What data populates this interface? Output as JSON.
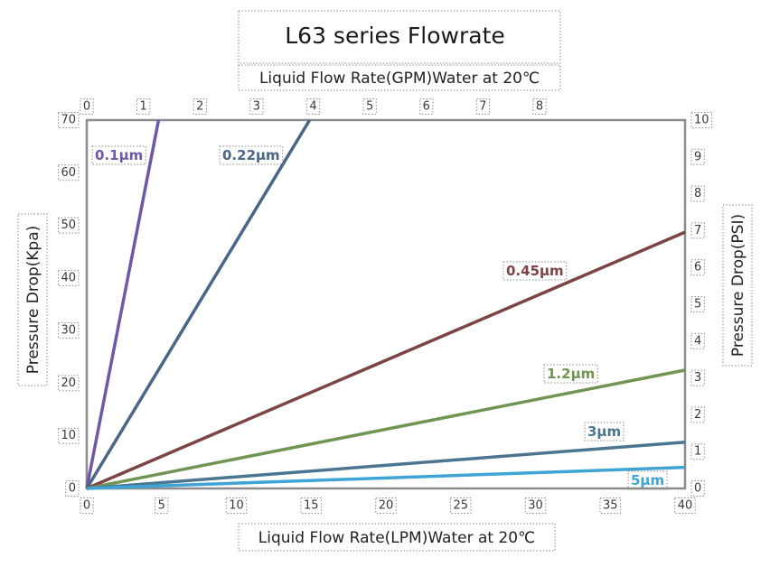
{
  "chart_data": {
    "type": "line",
    "title": "L63 series Flowrate",
    "xlabel_bottom": "Liquid Flow Rate(LPM)Water at 20℃",
    "xlabel_top": "Liquid Flow Rate(GPM)Water at 20℃",
    "ylabel_left": "Pressure Drop(Kpa)",
    "ylabel_right": "Pressure Drop(PSI)",
    "xlim_bottom": [
      0,
      40
    ],
    "xticks_bottom": [
      0,
      5,
      10,
      15,
      20,
      25,
      30,
      35,
      40
    ],
    "xlim_top": [
      0,
      10.57
    ],
    "xticks_top": [
      0,
      1,
      2,
      3,
      4,
      5,
      6,
      7,
      8
    ],
    "ylim_left": [
      0,
      70
    ],
    "yticks_left": [
      0,
      10,
      20,
      30,
      40,
      50,
      60,
      70
    ],
    "ylim_right": [
      0,
      10
    ],
    "yticks_right": [
      0,
      1,
      2,
      3,
      4,
      5,
      6,
      7,
      8,
      9,
      10
    ],
    "grid": false,
    "series": [
      {
        "name": "0.1μm",
        "color": "#7058a8",
        "points": [
          [
            0,
            0
          ],
          [
            4.8,
            70
          ]
        ]
      },
      {
        "name": "0.22μm",
        "color": "#4a6586",
        "points": [
          [
            0,
            0
          ],
          [
            14.9,
            70
          ]
        ]
      },
      {
        "name": "0.45μm",
        "color": "#7c4444",
        "points": [
          [
            0,
            0
          ],
          [
            40,
            48.7
          ]
        ]
      },
      {
        "name": "1.2μm",
        "color": "#719453",
        "points": [
          [
            0,
            0
          ],
          [
            40,
            22.5
          ]
        ]
      },
      {
        "name": "3μm",
        "color": "#4c7690",
        "points": [
          [
            0,
            0
          ],
          [
            40,
            8.8
          ]
        ]
      },
      {
        "name": "5μm",
        "color": "#3fa4d4",
        "points": [
          [
            0,
            0
          ],
          [
            40,
            4.0
          ]
        ]
      }
    ]
  }
}
